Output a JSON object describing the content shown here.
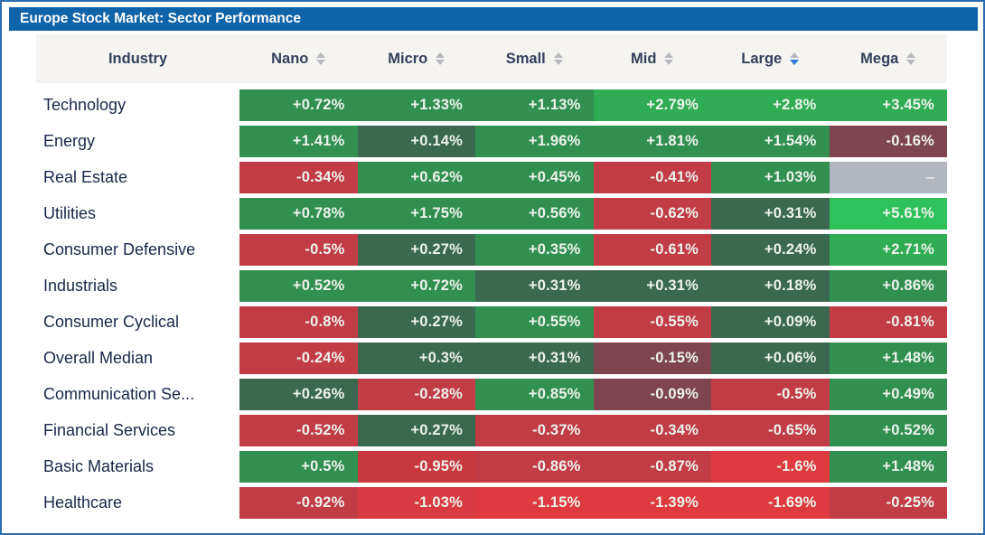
{
  "title_bar": {
    "text": "Europe Stock Market: Sector Performance"
  },
  "colors": {
    "frame_border": "#2A6CB2",
    "title_bar_bg": "#0E63A9",
    "header_bg": "#F5F4F1",
    "header_text": "#33415C",
    "row_label_text": "#18284A",
    "sort_arrow": "#B6BABF",
    "sort_arrow_active": "#2E7CD6",
    "green_bright": "#2EC15C",
    "green_strong": "#2FAC54",
    "green_medium": "#31904F",
    "green_dark": "#3A6950",
    "red_medium": "#C23C46",
    "red_bright": "#DE3A3F",
    "red_maroon": "#7E4450",
    "empty_cell_bg": "#B2B6BE"
  },
  "table": {
    "columns": [
      {
        "label": "Industry",
        "sortable": false,
        "sort": null
      },
      {
        "label": "Nano",
        "sortable": true,
        "sort": null
      },
      {
        "label": "Micro",
        "sortable": true,
        "sort": null
      },
      {
        "label": "Small",
        "sortable": true,
        "sort": null
      },
      {
        "label": "Mid",
        "sortable": true,
        "sort": null
      },
      {
        "label": "Large",
        "sortable": true,
        "sort": "desc"
      },
      {
        "label": "Mega",
        "sortable": true,
        "sort": null
      }
    ],
    "rows": [
      {
        "industry": "Technology",
        "cells": [
          {
            "text": "+0.72%",
            "bg": "#31904F"
          },
          {
            "text": "+1.33%",
            "bg": "#31904F"
          },
          {
            "text": "+1.13%",
            "bg": "#31904F"
          },
          {
            "text": "+2.79%",
            "bg": "#2FAC54"
          },
          {
            "text": "+2.8%",
            "bg": "#2FAC54"
          },
          {
            "text": "+3.45%",
            "bg": "#2FAC54"
          }
        ]
      },
      {
        "industry": "Energy",
        "cells": [
          {
            "text": "+1.41%",
            "bg": "#31904F"
          },
          {
            "text": "+0.14%",
            "bg": "#3A6950"
          },
          {
            "text": "+1.96%",
            "bg": "#31904F"
          },
          {
            "text": "+1.81%",
            "bg": "#31904F"
          },
          {
            "text": "+1.54%",
            "bg": "#31904F"
          },
          {
            "text": "-0.16%",
            "bg": "#7E4450"
          }
        ]
      },
      {
        "industry": "Real Estate",
        "cells": [
          {
            "text": "-0.34%",
            "bg": "#C23C46"
          },
          {
            "text": "+0.62%",
            "bg": "#31904F"
          },
          {
            "text": "+0.45%",
            "bg": "#31904F"
          },
          {
            "text": "-0.41%",
            "bg": "#C23C46"
          },
          {
            "text": "+1.03%",
            "bg": "#31904F"
          },
          {
            "text": "–",
            "bg": "#B2B6BE",
            "empty": true
          }
        ]
      },
      {
        "industry": "Utilities",
        "cells": [
          {
            "text": "+0.78%",
            "bg": "#31904F"
          },
          {
            "text": "+1.75%",
            "bg": "#31904F"
          },
          {
            "text": "+0.56%",
            "bg": "#31904F"
          },
          {
            "text": "-0.62%",
            "bg": "#C23C46"
          },
          {
            "text": "+0.31%",
            "bg": "#3A6950"
          },
          {
            "text": "+5.61%",
            "bg": "#2EC15C"
          }
        ]
      },
      {
        "industry": "Consumer Defensive",
        "cells": [
          {
            "text": "-0.5%",
            "bg": "#C23C46"
          },
          {
            "text": "+0.27%",
            "bg": "#3A6950"
          },
          {
            "text": "+0.35%",
            "bg": "#31904F"
          },
          {
            "text": "-0.61%",
            "bg": "#C23C46"
          },
          {
            "text": "+0.24%",
            "bg": "#3A6950"
          },
          {
            "text": "+2.71%",
            "bg": "#2FAC54"
          }
        ]
      },
      {
        "industry": "Industrials",
        "cells": [
          {
            "text": "+0.52%",
            "bg": "#31904F"
          },
          {
            "text": "+0.72%",
            "bg": "#31904F"
          },
          {
            "text": "+0.31%",
            "bg": "#3A6950"
          },
          {
            "text": "+0.31%",
            "bg": "#3A6950"
          },
          {
            "text": "+0.18%",
            "bg": "#3A6950"
          },
          {
            "text": "+0.86%",
            "bg": "#31904F"
          }
        ]
      },
      {
        "industry": "Consumer Cyclical",
        "cells": [
          {
            "text": "-0.8%",
            "bg": "#C23C46"
          },
          {
            "text": "+0.27%",
            "bg": "#3A6950"
          },
          {
            "text": "+0.55%",
            "bg": "#31904F"
          },
          {
            "text": "-0.55%",
            "bg": "#C23C46"
          },
          {
            "text": "+0.09%",
            "bg": "#3A6950"
          },
          {
            "text": "-0.81%",
            "bg": "#C23C46"
          }
        ]
      },
      {
        "industry": "Overall Median",
        "cells": [
          {
            "text": "-0.24%",
            "bg": "#C23C46"
          },
          {
            "text": "+0.3%",
            "bg": "#3A6950"
          },
          {
            "text": "+0.31%",
            "bg": "#3A6950"
          },
          {
            "text": "-0.15%",
            "bg": "#7E4450"
          },
          {
            "text": "+0.06%",
            "bg": "#3A6950"
          },
          {
            "text": "+1.48%",
            "bg": "#31904F"
          }
        ]
      },
      {
        "industry": "Communication Se...",
        "cells": [
          {
            "text": "+0.26%",
            "bg": "#3A6950"
          },
          {
            "text": "-0.28%",
            "bg": "#C23C46"
          },
          {
            "text": "+0.85%",
            "bg": "#31904F"
          },
          {
            "text": "-0.09%",
            "bg": "#7E4450"
          },
          {
            "text": "-0.5%",
            "bg": "#C23C46"
          },
          {
            "text": "+0.49%",
            "bg": "#31904F"
          }
        ]
      },
      {
        "industry": "Financial Services",
        "cells": [
          {
            "text": "-0.52%",
            "bg": "#C23C46"
          },
          {
            "text": "+0.27%",
            "bg": "#3A6950"
          },
          {
            "text": "-0.37%",
            "bg": "#C23C46"
          },
          {
            "text": "-0.34%",
            "bg": "#C23C46"
          },
          {
            "text": "-0.65%",
            "bg": "#C23C46"
          },
          {
            "text": "+0.52%",
            "bg": "#31904F"
          }
        ]
      },
      {
        "industry": "Basic Materials",
        "cells": [
          {
            "text": "+0.5%",
            "bg": "#31904F"
          },
          {
            "text": "-0.95%",
            "bg": "#C8393F"
          },
          {
            "text": "-0.86%",
            "bg": "#C23C46"
          },
          {
            "text": "-0.87%",
            "bg": "#C23C46"
          },
          {
            "text": "-1.6%",
            "bg": "#DE3A3F"
          },
          {
            "text": "+1.48%",
            "bg": "#31904F"
          }
        ]
      },
      {
        "industry": "Healthcare",
        "cells": [
          {
            "text": "-0.92%",
            "bg": "#C23C46"
          },
          {
            "text": "-1.03%",
            "bg": "#D83B41"
          },
          {
            "text": "-1.15%",
            "bg": "#DE3A3F"
          },
          {
            "text": "-1.39%",
            "bg": "#DE3A3F"
          },
          {
            "text": "-1.69%",
            "bg": "#DE3A3F"
          },
          {
            "text": "-0.25%",
            "bg": "#C23C46"
          }
        ]
      }
    ]
  },
  "chart_data": {
    "type": "heatmap",
    "title": "Europe Stock Market: Sector Performance",
    "x_categories": [
      "Nano",
      "Micro",
      "Small",
      "Mid",
      "Large",
      "Mega"
    ],
    "y_categories": [
      "Technology",
      "Energy",
      "Real Estate",
      "Utilities",
      "Consumer Defensive",
      "Industrials",
      "Consumer Cyclical",
      "Overall Median",
      "Communication Se...",
      "Financial Services",
      "Basic Materials",
      "Healthcare"
    ],
    "values_pct": [
      [
        0.72,
        1.33,
        1.13,
        2.79,
        2.8,
        3.45
      ],
      [
        1.41,
        0.14,
        1.96,
        1.81,
        1.54,
        -0.16
      ],
      [
        -0.34,
        0.62,
        0.45,
        -0.41,
        1.03,
        null
      ],
      [
        0.78,
        1.75,
        0.56,
        -0.62,
        0.31,
        5.61
      ],
      [
        -0.5,
        0.27,
        0.35,
        -0.61,
        0.24,
        2.71
      ],
      [
        0.52,
        0.72,
        0.31,
        0.31,
        0.18,
        0.86
      ],
      [
        -0.8,
        0.27,
        0.55,
        -0.55,
        0.09,
        -0.81
      ],
      [
        -0.24,
        0.3,
        0.31,
        -0.15,
        0.06,
        1.48
      ],
      [
        0.26,
        -0.28,
        0.85,
        -0.09,
        -0.5,
        0.49
      ],
      [
        -0.52,
        0.27,
        -0.37,
        -0.34,
        -0.65,
        0.52
      ],
      [
        0.5,
        -0.95,
        -0.86,
        -0.87,
        -1.6,
        1.48
      ],
      [
        -0.92,
        -1.03,
        -1.15,
        -1.39,
        -1.69,
        -0.25
      ]
    ],
    "sort_indicator": {
      "column": "Large",
      "direction": "desc"
    },
    "color_encoding": "green = positive %, red = negative %, darker = closer to zero, gray = no data"
  }
}
